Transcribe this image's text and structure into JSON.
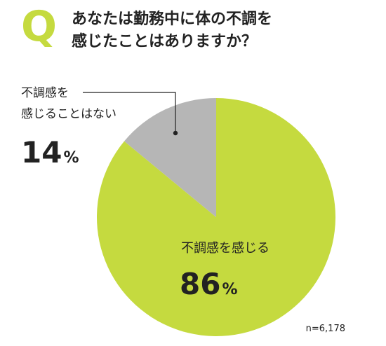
{
  "question": {
    "mark": "Q",
    "line1": "あなたは勤務中に体の不調を",
    "line2": "感じたことはありますか？"
  },
  "sample_size": "n=6,178",
  "colors": {
    "accent": "#c5da3f",
    "minor_slice": "#b6b6b6",
    "text": "#222222"
  },
  "chart_data": {
    "type": "pie",
    "title": "あなたは勤務中に体の不調を感じたことはありますか？",
    "slices": [
      {
        "label_lines": [
          "不調感を感じる"
        ],
        "value": 86,
        "value_text": "86",
        "unit": "%",
        "color": "#c5da3f"
      },
      {
        "label_lines": [
          "不調感を",
          "感じることはない"
        ],
        "value": 14,
        "value_text": "14",
        "unit": "%",
        "color": "#b6b6b6"
      }
    ],
    "start": "12 o'clock",
    "direction": "clockwise",
    "legend": "none"
  }
}
